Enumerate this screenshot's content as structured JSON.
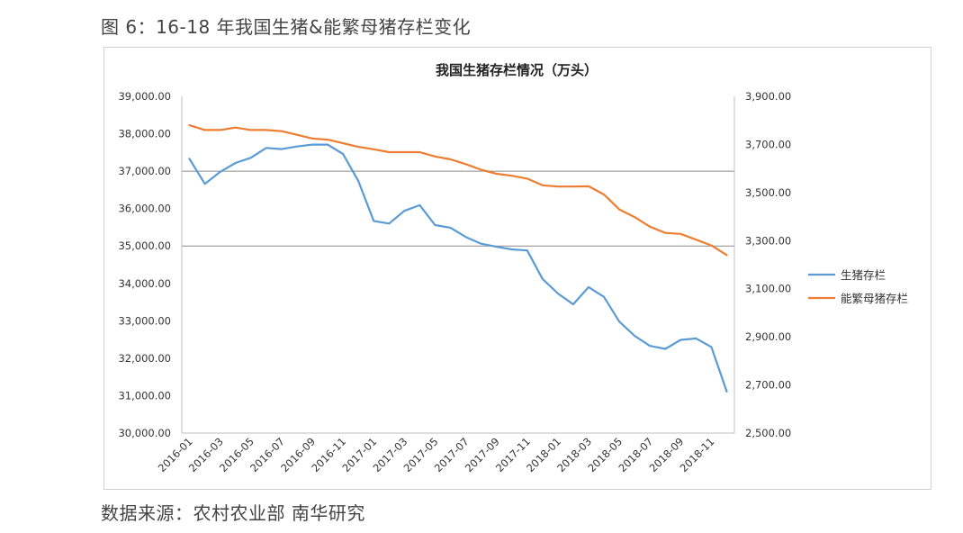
{
  "figure_title": "图 6：16-18 年我国生猪&能繁母猪存栏变化",
  "source": "数据来源：农村农业部 南华研究",
  "chart_data": {
    "type": "line",
    "title": "我国生猪存栏情况（万头）",
    "x": [
      "2016-01",
      "2016-02",
      "2016-03",
      "2016-04",
      "2016-05",
      "2016-06",
      "2016-07",
      "2016-08",
      "2016-09",
      "2016-10",
      "2016-11",
      "2016-12",
      "2017-01",
      "2017-02",
      "2017-03",
      "2017-04",
      "2017-05",
      "2017-06",
      "2017-07",
      "2017-08",
      "2017-09",
      "2017-10",
      "2017-11",
      "2017-12",
      "2018-01",
      "2018-02",
      "2018-03",
      "2018-04",
      "2018-05",
      "2018-06",
      "2018-07",
      "2018-08",
      "2018-09",
      "2018-10",
      "2018-11",
      "2018-12"
    ],
    "x_tick_labels": [
      "2016-01",
      "2016-03",
      "2016-05",
      "2016-07",
      "2016-09",
      "2016-11",
      "2017-01",
      "2017-03",
      "2017-05",
      "2017-07",
      "2017-09",
      "2017-11",
      "2018-01",
      "2018-03",
      "2018-05",
      "2018-07",
      "2018-09",
      "2018-11"
    ],
    "y_left": {
      "min": 30000,
      "max": 39000,
      "step": 1000,
      "tick_labels": [
        "30,000.00",
        "31,000.00",
        "32,000.00",
        "33,000.00",
        "34,000.00",
        "35,000.00",
        "36,000.00",
        "37,000.00",
        "38,000.00",
        "39,000.00"
      ]
    },
    "y_right": {
      "min": 2500,
      "max": 3900,
      "step": 200,
      "tick_labels": [
        "2,500.00",
        "2,700.00",
        "2,900.00",
        "3,100.00",
        "3,300.00",
        "3,500.00",
        "3,700.00",
        "3,900.00"
      ]
    },
    "grid": "horizontal at 35,000 and 37,000 only",
    "legend_position": "right",
    "series": [
      {
        "name": "生猪存栏",
        "axis": "left",
        "color": "#5b9bd5",
        "values": [
          37330,
          36660,
          36980,
          37220,
          37360,
          37620,
          37590,
          37660,
          37710,
          37710,
          37460,
          36740,
          35670,
          35600,
          35940,
          36090,
          35560,
          35490,
          35240,
          35060,
          34980,
          34910,
          34880,
          34120,
          33730,
          33440,
          33900,
          33640,
          32980,
          32600,
          32330,
          32250,
          32490,
          32530,
          32300,
          31110
        ]
      },
      {
        "name": "能繁母猪存栏",
        "axis": "right",
        "color": "#ed7d31",
        "values": [
          3780,
          3760,
          3760,
          3770,
          3760,
          3760,
          3755,
          3740,
          3725,
          3720,
          3705,
          3690,
          3680,
          3668,
          3668,
          3668,
          3650,
          3638,
          3618,
          3595,
          3578,
          3570,
          3558,
          3530,
          3525,
          3525,
          3526,
          3492,
          3430,
          3398,
          3358,
          3332,
          3328,
          3304,
          3280,
          3240
        ]
      }
    ]
  }
}
